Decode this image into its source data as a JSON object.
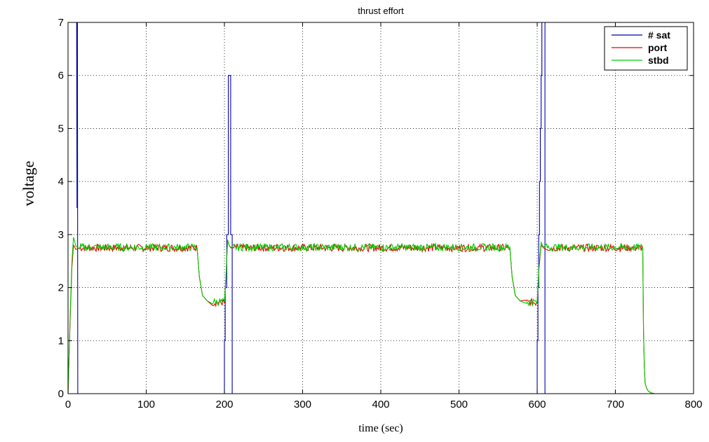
{
  "chart_data": {
    "type": "line",
    "title": "thrust effort",
    "xlabel": "time (sec)",
    "ylabel": "voltage",
    "xlim": [
      0,
      800
    ],
    "ylim": [
      0,
      7
    ],
    "xticks": [
      0,
      100,
      200,
      300,
      400,
      500,
      600,
      700,
      800
    ],
    "yticks": [
      0,
      1,
      2,
      3,
      4,
      5,
      6,
      7
    ],
    "grid": true,
    "legend_position": "top-right",
    "series": [
      {
        "name": "# sat",
        "color": "#0000aa",
        "x": [
          0,
          11,
          11.5,
          12,
          12.5,
          13,
          200,
          200,
          201,
          201,
          203,
          203,
          205,
          205,
          208,
          208,
          210,
          210,
          212,
          600,
          600,
          601,
          601,
          602,
          602,
          603,
          603,
          604,
          604,
          605,
          605,
          606,
          606,
          608,
          608,
          610,
          610,
          740
        ],
        "y": [
          7,
          7,
          3.5,
          7,
          0,
          0,
          0,
          1,
          1,
          2,
          2,
          3,
          3,
          6,
          6,
          3,
          3,
          0,
          0,
          0,
          1,
          1,
          2,
          2,
          3,
          3,
          4,
          4,
          5,
          5,
          6,
          6,
          7,
          7,
          7,
          7,
          0,
          0
        ]
      },
      {
        "name": "port",
        "color": "#ee0000",
        "x": [
          0,
          3,
          5,
          7,
          10,
          15,
          165,
          168,
          172,
          178,
          185,
          200,
          202,
          204,
          206,
          208,
          212,
          565,
          568,
          572,
          578,
          585,
          600,
          602,
          605,
          608,
          612,
          735,
          736,
          737,
          738,
          740,
          742,
          745,
          750
        ],
        "y": [
          0,
          1.5,
          2.4,
          2.8,
          2.72,
          2.75,
          2.75,
          2.2,
          1.85,
          1.75,
          1.72,
          1.72,
          2.2,
          2.9,
          2.8,
          2.75,
          2.75,
          2.75,
          2.2,
          1.85,
          1.75,
          1.72,
          1.72,
          2.3,
          2.8,
          2.75,
          2.75,
          2.75,
          1.2,
          0.5,
          0.2,
          0.1,
          0.05,
          0.02,
          0
        ]
      },
      {
        "name": "stbd",
        "color": "#00cc00",
        "x": [
          0,
          3,
          5,
          7,
          10,
          15,
          165,
          168,
          172,
          178,
          185,
          200,
          202,
          204,
          206,
          208,
          212,
          565,
          568,
          572,
          578,
          585,
          600,
          602,
          605,
          608,
          612,
          735,
          736,
          737,
          738,
          740,
          742,
          745,
          750
        ],
        "y": [
          0,
          1.6,
          2.5,
          2.95,
          2.78,
          2.76,
          2.76,
          2.2,
          1.85,
          1.75,
          1.73,
          1.73,
          2.2,
          2.9,
          2.8,
          2.75,
          2.76,
          2.76,
          2.2,
          1.85,
          1.75,
          1.73,
          1.73,
          2.3,
          2.85,
          2.76,
          2.76,
          2.76,
          1.2,
          0.5,
          0.2,
          0.1,
          0.05,
          0.02,
          0
        ]
      }
    ]
  }
}
